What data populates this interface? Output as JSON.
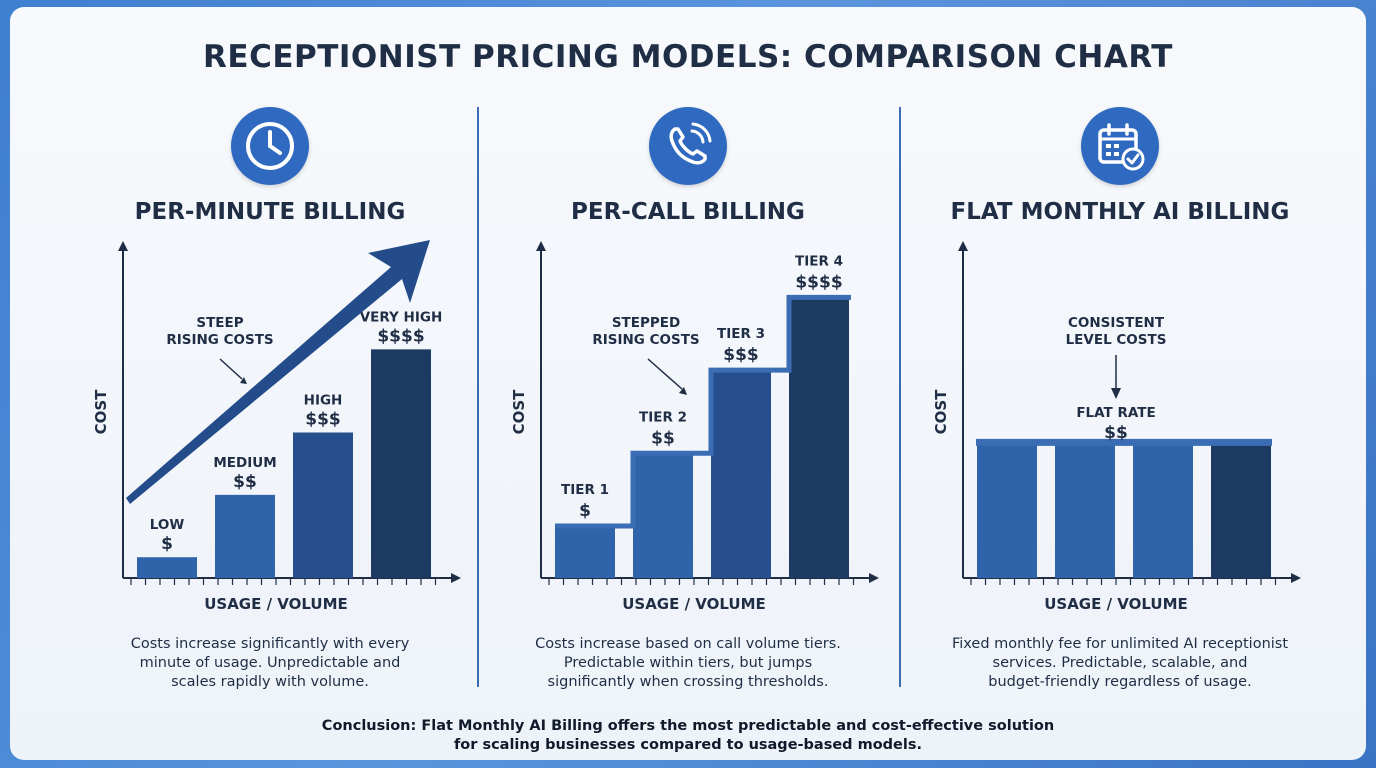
{
  "title": "RECEPTIONIST PRICING MODELS: COMPARISON CHART",
  "colors": {
    "bar_light": "#2f63aa",
    "bar_mid": "#274f8d",
    "bar_dark": "#1d3a63",
    "accent": "#3a6db3",
    "axis": "#1f2d45"
  },
  "panels": [
    {
      "icon": "clock-icon",
      "title": "PER-MINUTE BILLING",
      "description_lines": [
        "Costs increase significantly with every",
        "minute of usage. Unpredictable and",
        "scales rapidly with volume."
      ]
    },
    {
      "icon": "phone-icon",
      "title": "PER-CALL BILLING",
      "description_lines": [
        "Costs increase based on call volume tiers.",
        "Predictable within tiers, but jumps",
        "significantly when crossing thresholds."
      ]
    },
    {
      "icon": "calendar-check-icon",
      "title": "FLAT MONTHLY AI BILLING",
      "description_lines": [
        "Fixed monthly fee for unlimited AI receptionist",
        "services. Predictable, scalable, and",
        "budget-friendly regardless of usage."
      ]
    }
  ],
  "chart_data": [
    {
      "type": "bar",
      "xlabel": "USAGE / VOLUME",
      "ylabel": "COST",
      "categories": [
        "LOW",
        "MEDIUM",
        "HIGH",
        "VERY HIGH"
      ],
      "value_labels": [
        "$",
        "$$",
        "$$$",
        "$$$$"
      ],
      "values": [
        1,
        4,
        7,
        11
      ],
      "annotation": [
        "STEEP",
        "RISING COSTS"
      ],
      "trend_arrow": true
    },
    {
      "type": "bar",
      "xlabel": "USAGE / VOLUME",
      "ylabel": "COST",
      "categories": [
        "TIER 1",
        "TIER 2",
        "TIER 3",
        "TIER 4"
      ],
      "value_labels": [
        "$",
        "$$",
        "$$$",
        "$$$$"
      ],
      "values": [
        2.5,
        6,
        10,
        13.5
      ],
      "annotation": [
        "STEPPED",
        "RISING COSTS"
      ],
      "step_line": true
    },
    {
      "type": "bar",
      "xlabel": "USAGE / VOLUME",
      "ylabel": "COST",
      "categories": [
        "",
        "",
        "",
        ""
      ],
      "values": [
        6.5,
        6.5,
        6.5,
        6.5
      ],
      "flat_label": [
        "FLAT RATE",
        "$$"
      ],
      "annotation": [
        "CONSISTENT",
        "LEVEL COSTS"
      ],
      "flat_line": true
    }
  ],
  "conclusion_lines": [
    "Conclusion: Flat Monthly AI Billing offers the most predictable and cost-effective solution",
    "for scaling businesses compared to usage-based models."
  ]
}
